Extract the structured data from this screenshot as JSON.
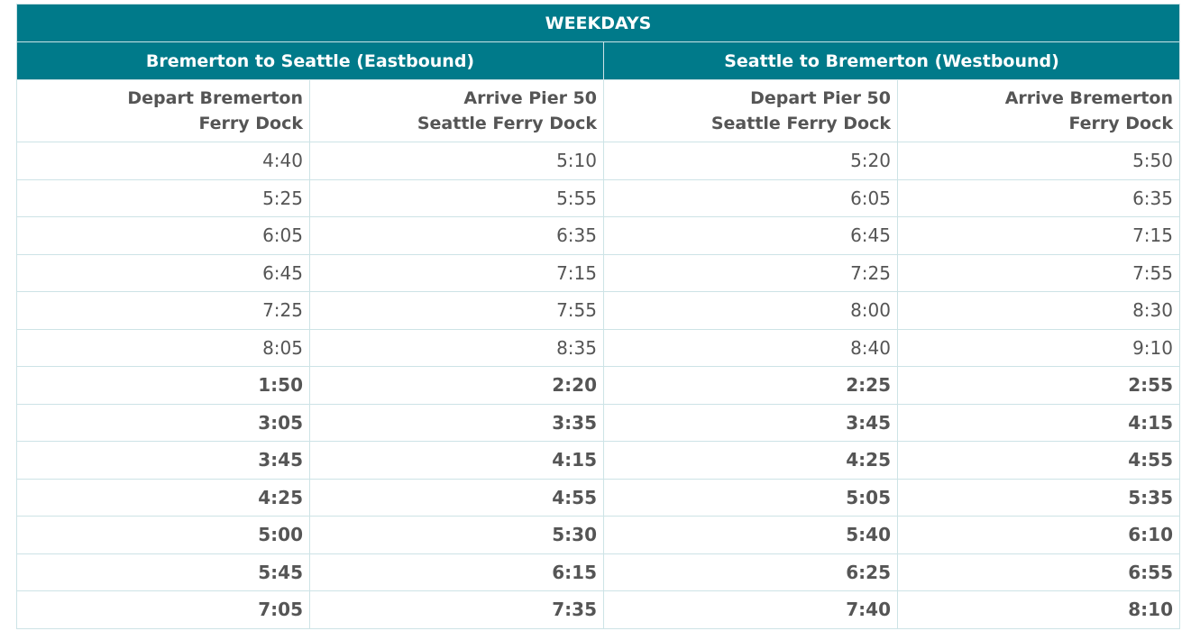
{
  "title": "WEEKDAYS",
  "directions": [
    "Bremerton to Seattle (Eastbound)",
    "Seattle to Bremerton (Westbound)"
  ],
  "columns": [
    {
      "line1": "Depart Bremerton",
      "line2": "Ferry Dock"
    },
    {
      "line1": "Arrive Pier 50",
      "line2": "Seattle Ferry Dock"
    },
    {
      "line1": "Depart Pier 50",
      "line2": "Seattle Ferry Dock"
    },
    {
      "line1": "Arrive Bremerton",
      "line2": "Ferry Dock"
    }
  ],
  "rows": [
    {
      "times": [
        "4:40",
        "5:10",
        "5:20",
        "5:50"
      ],
      "bold": false
    },
    {
      "times": [
        "5:25",
        "5:55",
        "6:05",
        "6:35"
      ],
      "bold": false
    },
    {
      "times": [
        "6:05",
        "6:35",
        "6:45",
        "7:15"
      ],
      "bold": false
    },
    {
      "times": [
        "6:45",
        "7:15",
        "7:25",
        "7:55"
      ],
      "bold": false
    },
    {
      "times": [
        "7:25",
        "7:55",
        "8:00",
        "8:30"
      ],
      "bold": false
    },
    {
      "times": [
        "8:05",
        "8:35",
        "8:40",
        "9:10"
      ],
      "bold": false
    },
    {
      "times": [
        "1:50",
        "2:20",
        "2:25",
        "2:55"
      ],
      "bold": true
    },
    {
      "times": [
        "3:05",
        "3:35",
        "3:45",
        "4:15"
      ],
      "bold": true
    },
    {
      "times": [
        "3:45",
        "4:15",
        "4:25",
        "4:55"
      ],
      "bold": true
    },
    {
      "times": [
        "4:25",
        "4:55",
        "5:05",
        "5:35"
      ],
      "bold": true
    },
    {
      "times": [
        "5:00",
        "5:30",
        "5:40",
        "6:10"
      ],
      "bold": true
    },
    {
      "times": [
        "5:45",
        "6:15",
        "6:25",
        "6:55"
      ],
      "bold": true
    },
    {
      "times": [
        "7:05",
        "7:35",
        "7:40",
        "8:10"
      ],
      "bold": true
    }
  ],
  "colors": {
    "header_bg": "#007a8a",
    "header_text": "#ffffff",
    "body_text": "#555555",
    "grid_line": "#cde3e6"
  }
}
